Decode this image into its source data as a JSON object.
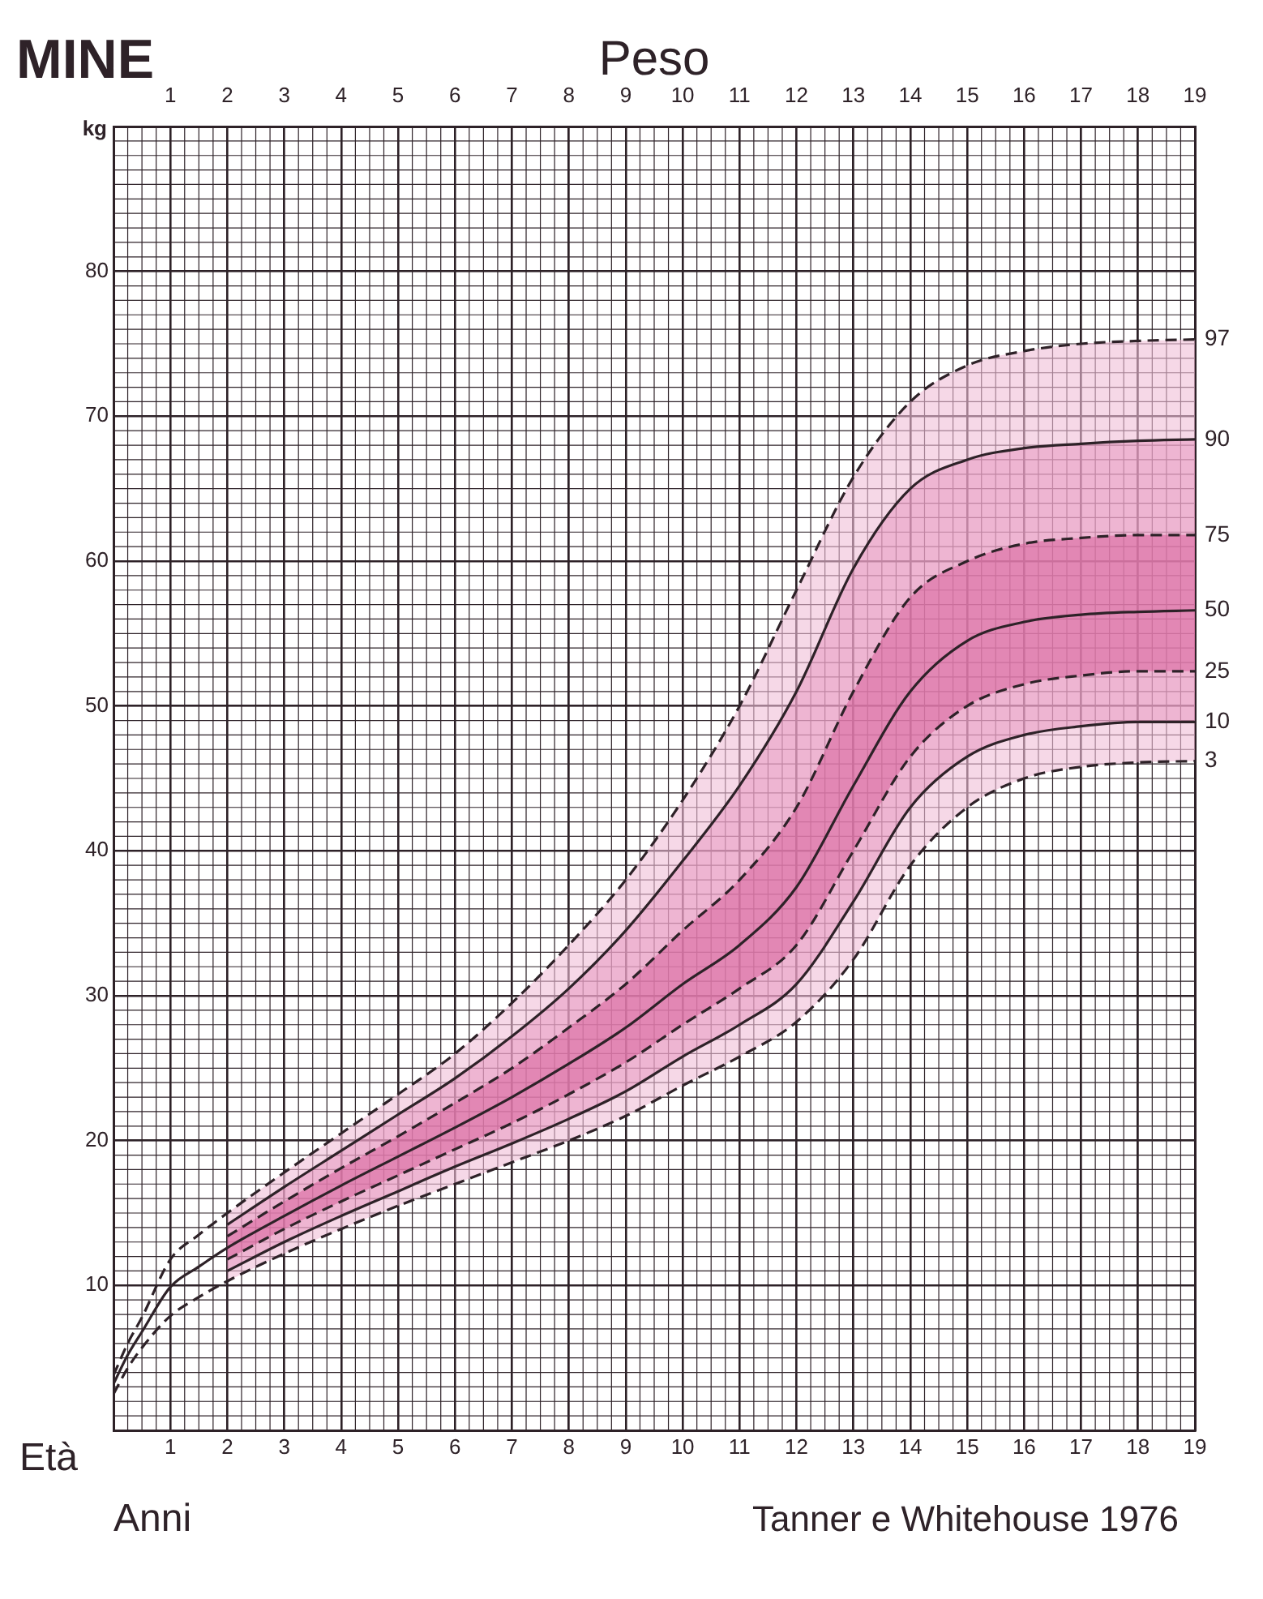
{
  "chart_data": {
    "type": "line",
    "title": "Peso",
    "xlabel": "Età",
    "ylabel": "kg",
    "annotations": [
      "MINE",
      "Anni",
      "Tanner e Whitehouse 1976"
    ],
    "xlim": [
      0,
      19
    ],
    "xticks": [
      1,
      2,
      3,
      4,
      5,
      6,
      7,
      8,
      9,
      10,
      11,
      12,
      13,
      14,
      15,
      16,
      17,
      18,
      19
    ],
    "x2lim": [
      0,
      19
    ],
    "x2ticks": [
      1,
      2,
      3,
      4,
      5,
      6,
      7,
      8,
      9,
      10,
      11,
      12,
      13,
      14,
      15,
      16,
      17,
      18,
      19
    ],
    "ylim": [
      0,
      90
    ],
    "yticks": [
      10,
      20,
      30,
      40,
      50,
      60,
      70,
      80
    ],
    "grid": true,
    "legend": false,
    "marker": "none",
    "series": [
      {
        "name": "97",
        "color": "#2e2228",
        "line_style": "dashed",
        "x": [
          0,
          0.25,
          0.5,
          1,
          1.5,
          2,
          3,
          4,
          5,
          6,
          7,
          8,
          9,
          10,
          11,
          12,
          13,
          14,
          15,
          16,
          17,
          18,
          19
        ],
        "values": [
          3.8,
          6.0,
          7.8,
          11.8,
          13.5,
          15.0,
          17.8,
          20.5,
          23.2,
          26.0,
          29.5,
          33.5,
          38.0,
          43.5,
          50.0,
          58.0,
          65.8,
          71.0,
          73.5,
          74.5,
          75.0,
          75.2,
          75.3
        ],
        "lower": [
          null,
          null,
          null,
          null,
          null,
          10.3,
          12.2,
          13.9,
          15.5,
          17.0,
          18.5,
          20.0,
          21.7,
          23.8,
          25.8,
          28.2,
          32.5,
          39.0,
          43.0,
          45.0,
          45.8,
          46.1,
          46.2
        ],
        "upper": [
          null,
          null,
          null,
          null,
          null,
          15.0,
          17.8,
          20.5,
          23.2,
          26.0,
          29.5,
          33.5,
          38.0,
          43.5,
          50.0,
          58.0,
          65.8,
          71.0,
          73.5,
          74.5,
          75.0,
          75.2,
          75.3
        ]
      },
      {
        "name": "90",
        "color": "#2e2228",
        "line_style": "solid",
        "x": [
          2,
          3,
          4,
          5,
          6,
          7,
          8,
          9,
          10,
          11,
          12,
          13,
          14,
          15,
          16,
          17,
          18,
          19
        ],
        "values": [
          14.2,
          16.8,
          19.3,
          21.8,
          24.3,
          27.2,
          30.5,
          34.5,
          39.3,
          44.5,
          51.0,
          59.5,
          65.0,
          67.0,
          67.8,
          68.1,
          68.3,
          68.4
        ],
        "lower": [
          11.0,
          13.0,
          14.8,
          16.5,
          18.2,
          19.8,
          21.5,
          23.4,
          25.8,
          28.0,
          30.8,
          36.5,
          43.0,
          46.5,
          48.0,
          48.6,
          48.9,
          48.9
        ],
        "upper": [
          14.2,
          16.8,
          19.3,
          21.8,
          24.3,
          27.2,
          30.5,
          34.5,
          39.3,
          44.5,
          51.0,
          59.5,
          65.0,
          67.0,
          67.8,
          68.1,
          68.3,
          68.4
        ]
      },
      {
        "name": "75",
        "color": "#2e2228",
        "line_style": "dashed",
        "x": [
          2,
          3,
          4,
          5,
          6,
          7,
          8,
          9,
          10,
          11,
          12,
          13,
          14,
          15,
          16,
          17,
          18,
          19
        ],
        "values": [
          13.4,
          15.8,
          18.1,
          20.3,
          22.6,
          25.0,
          27.8,
          30.8,
          34.5,
          38.0,
          43.0,
          51.0,
          57.5,
          60.0,
          61.2,
          61.6,
          61.8,
          61.8
        ]
      },
      {
        "name": "50",
        "color": "#2e2228",
        "line_style": "solid",
        "x": [
          0,
          0.25,
          0.5,
          1,
          1.5,
          2,
          3,
          4,
          5,
          6,
          7,
          8,
          9,
          10,
          11,
          12,
          13,
          14,
          15,
          16,
          17,
          18,
          19
        ],
        "values": [
          3.2,
          5.2,
          6.8,
          9.9,
          11.3,
          12.6,
          14.8,
          16.9,
          18.9,
          20.9,
          23.0,
          25.3,
          27.8,
          30.8,
          33.5,
          37.5,
          44.5,
          51.0,
          54.5,
          55.8,
          56.3,
          56.5,
          56.6
        ],
        "lower": [
          null,
          null,
          null,
          null,
          null,
          11.8,
          13.9,
          15.8,
          17.6,
          19.4,
          21.2,
          23.2,
          25.4,
          28.0,
          30.5,
          33.5,
          40.0,
          46.5,
          50.0,
          51.5,
          52.1,
          52.4,
          52.4
        ],
        "upper": [
          null,
          null,
          null,
          null,
          null,
          13.4,
          15.8,
          18.1,
          20.3,
          22.6,
          25.0,
          27.8,
          30.8,
          34.5,
          38.0,
          43.0,
          51.0,
          57.5,
          60.0,
          61.2,
          61.6,
          61.8,
          61.8
        ]
      },
      {
        "name": "25",
        "color": "#2e2228",
        "line_style": "dashed",
        "x": [
          2,
          3,
          4,
          5,
          6,
          7,
          8,
          9,
          10,
          11,
          12,
          13,
          14,
          15,
          16,
          17,
          18,
          19
        ],
        "values": [
          11.8,
          13.9,
          15.8,
          17.6,
          19.4,
          21.2,
          23.2,
          25.4,
          28.0,
          30.5,
          33.5,
          40.0,
          46.5,
          50.0,
          51.5,
          52.1,
          52.4,
          52.4
        ]
      },
      {
        "name": "10",
        "color": "#2e2228",
        "line_style": "solid",
        "x": [
          2,
          3,
          4,
          5,
          6,
          7,
          8,
          9,
          10,
          11,
          12,
          13,
          14,
          15,
          16,
          17,
          18,
          19
        ],
        "values": [
          11.0,
          13.0,
          14.8,
          16.5,
          18.2,
          19.8,
          21.5,
          23.4,
          25.8,
          28.0,
          30.8,
          36.5,
          43.0,
          46.5,
          48.0,
          48.6,
          48.9,
          48.9
        ]
      },
      {
        "name": "3",
        "color": "#2e2228",
        "line_style": "dashed",
        "x": [
          0,
          0.25,
          0.5,
          1,
          1.5,
          2,
          3,
          4,
          5,
          6,
          7,
          8,
          9,
          10,
          11,
          12,
          13,
          14,
          15,
          16,
          17,
          18,
          19
        ],
        "values": [
          2.5,
          4.3,
          5.7,
          7.9,
          9.2,
          10.3,
          12.2,
          13.9,
          15.5,
          17.0,
          18.5,
          20.0,
          21.7,
          23.8,
          25.8,
          28.2,
          32.5,
          39.0,
          43.0,
          45.0,
          45.8,
          46.1,
          46.2
        ]
      }
    ]
  }
}
